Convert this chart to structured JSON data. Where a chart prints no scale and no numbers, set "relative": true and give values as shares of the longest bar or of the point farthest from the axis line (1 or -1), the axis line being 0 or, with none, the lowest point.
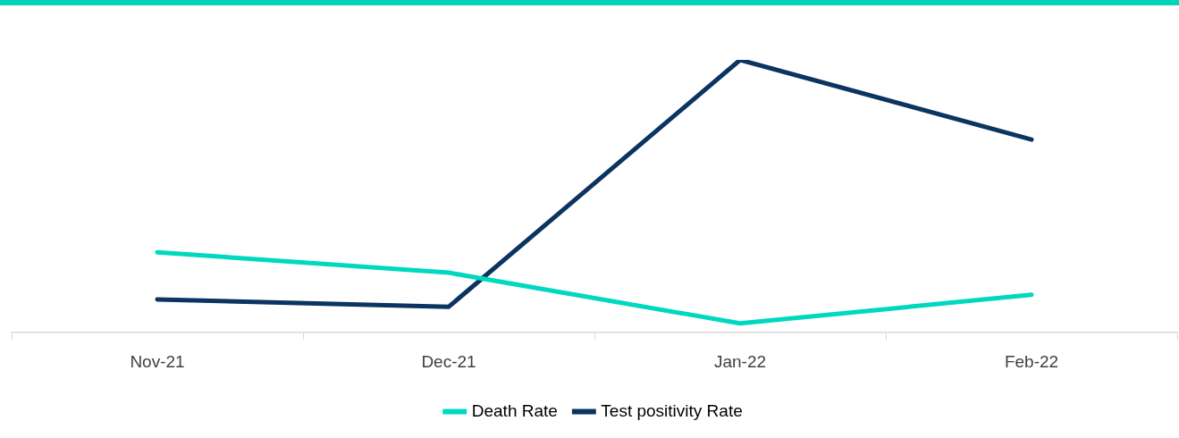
{
  "chart_data": {
    "type": "line",
    "relative": true,
    "categories": [
      "Nov-21",
      "Dec-21",
      "Jan-22",
      "Feb-22"
    ],
    "series": [
      {
        "name": "Death Rate",
        "color": "#00d8c0",
        "values": [
          0.295,
          0.22,
          0.034,
          0.139
        ]
      },
      {
        "name": "Test positivity Rate",
        "color": "#0b3460",
        "values": [
          0.122,
          0.095,
          1,
          0.708
        ]
      }
    ],
    "legend": "bottom",
    "marker": "none",
    "line_style": "solid",
    "grid": false
  }
}
